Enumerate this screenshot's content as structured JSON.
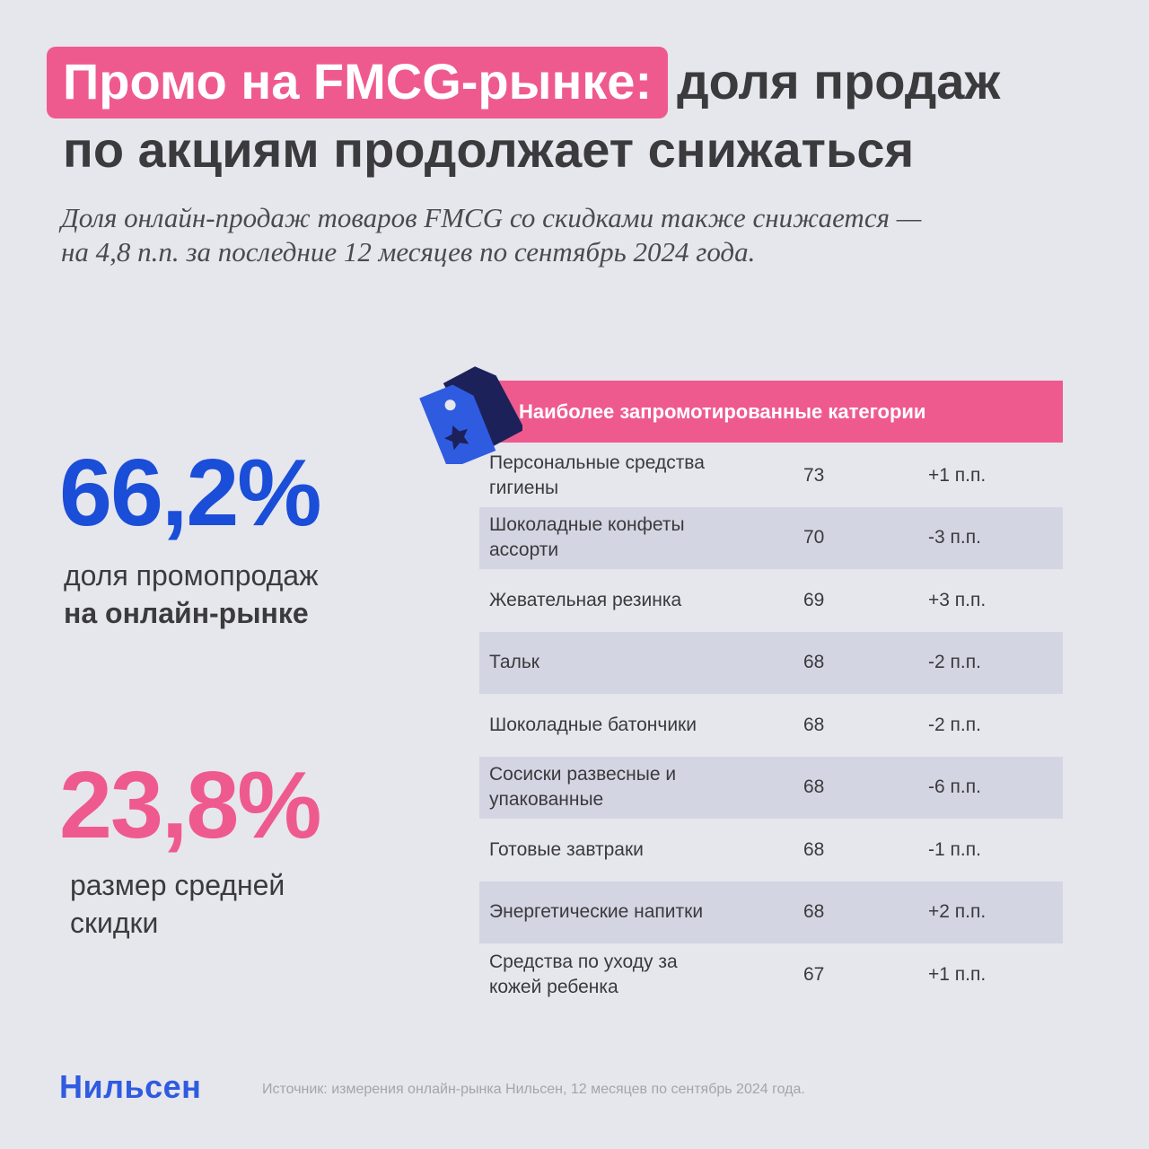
{
  "header": {
    "title_highlight": "Промо на FMCG-рынке:",
    "title_rest": "доля продаж",
    "title_line2": "по акциям продолжает снижаться",
    "subtitle_line1": "Доля онлайн-продаж товаров FMCG со скидками также снижается —",
    "subtitle_line2": "на 4,8 п.п. за последние 12 месяцев по сентябрь 2024 года."
  },
  "stats": {
    "stat1_value": "66,2%",
    "stat1_label": "доля промопродаж",
    "stat1_label_bold": "на онлайн-рынке",
    "stat2_value": "23,8%",
    "stat2_label_line1": "размер средней",
    "stat2_label_line2": "скидки"
  },
  "table": {
    "title": "Наиболее запромотированные категории",
    "icon": "price-tag-star-icon",
    "rows": [
      {
        "name": "Персональные средства гигиены",
        "value": "73",
        "change": "+1 п.п."
      },
      {
        "name": "Шоколадные конфеты ассорти",
        "value": "70",
        "change": "-3 п.п."
      },
      {
        "name": "Жевательная резинка",
        "value": "69",
        "change": "+3 п.п."
      },
      {
        "name": "Тальк",
        "value": "68",
        "change": "-2 п.п."
      },
      {
        "name": "Шоколадные батончики",
        "value": "68",
        "change": "-2 п.п."
      },
      {
        "name": "Сосиски развесные и упакованные",
        "value": "68",
        "change": "-6 п.п."
      },
      {
        "name": "Готовые завтраки",
        "value": "68",
        "change": "-1 п.п."
      },
      {
        "name": "Энергетические напитки",
        "value": "68",
        "change": "+2 п.п."
      },
      {
        "name": "Средства по уходу за кожей ребенка",
        "value": "67",
        "change": "+1 п.п."
      }
    ]
  },
  "footer": {
    "logo": "Нильсен",
    "source": "Источник: измерения онлайн-рынка Нильсен, 12 месяцев по сентябрь 2024 года."
  },
  "colors": {
    "accent_pink": "#ef5a8e",
    "accent_blue": "#1a4ed8",
    "background": "#e6e6ed",
    "row_shade": "#d4d5e2"
  }
}
